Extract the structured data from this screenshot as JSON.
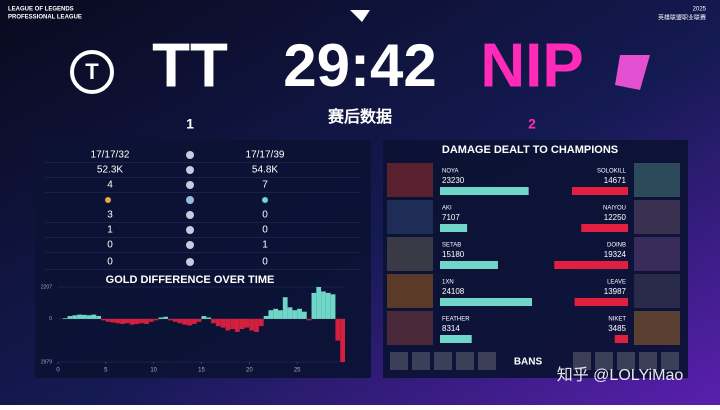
{
  "header": {
    "league_line1": "LEAGUE OF LEGENDS",
    "league_line2": "PROFESSIONAL LEAGUE",
    "year": "2025",
    "league_cn": "英雄联盟职业联赛",
    "left_team": "TT",
    "left_score": 1,
    "timer": "29:42",
    "subtitle": "赛后数据",
    "right_team": "NIP",
    "right_score": 2
  },
  "stats": {
    "rows": [
      {
        "left": "17/17/32",
        "right": "17/17/39"
      },
      {
        "left": "52.3K",
        "right": "54.8K"
      },
      {
        "left": 4,
        "right": 7
      },
      {
        "left": 3,
        "right": 0
      },
      {
        "left": 1,
        "right": 0
      },
      {
        "left": 0,
        "right": 1
      },
      {
        "left": 0,
        "right": 0
      }
    ]
  },
  "gold_chart": {
    "type": "bar",
    "title": "GOLD DIFFERENCE OVER TIME",
    "positive_color": "#6fd6c9",
    "negative_color": "#d3203e",
    "x": [
      0,
      0.5,
      1,
      1.5,
      2,
      2.5,
      3,
      3.5,
      4,
      4.5,
      5,
      5.5,
      6,
      6.5,
      7,
      7.5,
      8,
      8.5,
      9,
      9.5,
      10,
      10.5,
      11,
      11.5,
      12,
      12.5,
      13,
      13.5,
      14,
      14.5,
      15,
      15.5,
      16,
      16.5,
      17,
      17.5,
      18,
      18.5,
      19,
      19.5,
      20,
      20.5,
      21,
      21.5,
      22,
      22.5,
      23,
      23.5,
      24,
      24.5,
      25,
      25.5,
      26,
      26.5,
      27,
      27.5,
      28,
      28.5,
      29,
      29.5
    ],
    "values": [
      0,
      50,
      200,
      250,
      300,
      280,
      250,
      300,
      200,
      -100,
      -200,
      -250,
      -300,
      -350,
      -300,
      -400,
      -350,
      -300,
      -350,
      -200,
      -100,
      100,
      150,
      -100,
      -200,
      -300,
      -400,
      -450,
      -350,
      -200,
      200,
      100,
      -300,
      -500,
      -600,
      -800,
      -700,
      -900,
      -700,
      -600,
      -800,
      -900,
      -500,
      200,
      600,
      700,
      600,
      1500,
      800,
      600,
      700,
      500,
      -100,
      1800,
      2207,
      1900,
      1800,
      1700,
      -1500,
      -2979
    ],
    "xlim": [
      0,
      30
    ],
    "xticks": [
      0,
      5,
      10,
      15,
      20,
      25
    ],
    "ylim": [
      -2979,
      2207
    ],
    "yticks": [
      2207,
      0,
      {
        "value": -2979,
        "label": "2979"
      }
    ]
  },
  "damage": {
    "title": "DAMAGE DEALT TO CHAMPIONS",
    "left_color": "#6fd6c9",
    "right_color": "#e0203e",
    "rows": [
      {
        "left_name": "NOYA",
        "left_value": 23230,
        "right_name": "SOLOKILL",
        "right_value": 14671
      },
      {
        "left_name": "AKI",
        "left_value": 7107,
        "right_name": "NAIYOU",
        "right_value": 12250
      },
      {
        "left_name": "SETAB",
        "left_value": 15180,
        "right_name": "DOINB",
        "right_value": 19324
      },
      {
        "left_name": "1XN",
        "left_value": 24108,
        "right_name": "LEAVE",
        "right_value": 13987
      },
      {
        "left_name": "FEATHER",
        "left_value": 8314,
        "right_name": "NIKET",
        "right_value": 3485
      }
    ],
    "bans_label": "BANS"
  },
  "watermark": "知乎 @LOLYiMao"
}
